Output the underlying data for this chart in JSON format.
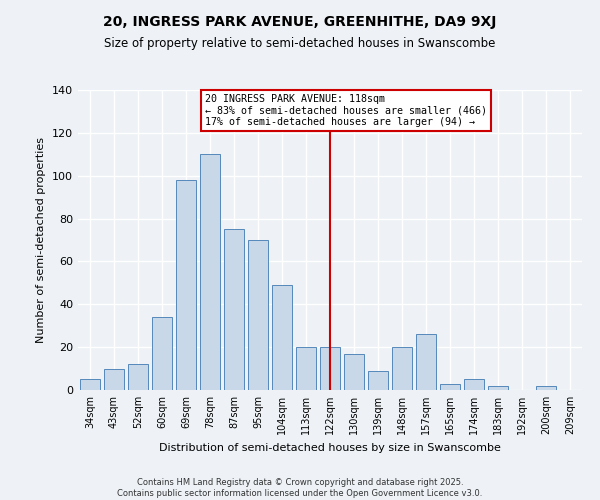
{
  "title": "20, INGRESS PARK AVENUE, GREENHITHE, DA9 9XJ",
  "subtitle": "Size of property relative to semi-detached houses in Swanscombe",
  "xlabel": "Distribution of semi-detached houses by size in Swanscombe",
  "ylabel": "Number of semi-detached properties",
  "categories": [
    "34sqm",
    "43sqm",
    "52sqm",
    "60sqm",
    "69sqm",
    "78sqm",
    "87sqm",
    "95sqm",
    "104sqm",
    "113sqm",
    "122sqm",
    "130sqm",
    "139sqm",
    "148sqm",
    "157sqm",
    "165sqm",
    "174sqm",
    "183sqm",
    "192sqm",
    "200sqm",
    "209sqm"
  ],
  "values": [
    5,
    10,
    12,
    34,
    98,
    110,
    75,
    70,
    49,
    20,
    20,
    17,
    9,
    20,
    26,
    3,
    5,
    2,
    0,
    2,
    0
  ],
  "bar_color": "#c8d8e8",
  "bar_edge_color": "#5588bb",
  "vline_x_index": 10,
  "vline_color": "#cc0000",
  "annotation_title": "20 INGRESS PARK AVENUE: 118sqm",
  "annotation_line1": "← 83% of semi-detached houses are smaller (466)",
  "annotation_line2": "17% of semi-detached houses are larger (94) →",
  "annotation_box_color": "#ffffff",
  "annotation_box_edge": "#cc0000",
  "ylim": [
    0,
    140
  ],
  "yticks": [
    0,
    20,
    40,
    60,
    80,
    100,
    120,
    140
  ],
  "footer1": "Contains HM Land Registry data © Crown copyright and database right 2025.",
  "footer2": "Contains public sector information licensed under the Open Government Licence v3.0.",
  "bg_color": "#eef2f6",
  "grid_color": "#ffffff"
}
